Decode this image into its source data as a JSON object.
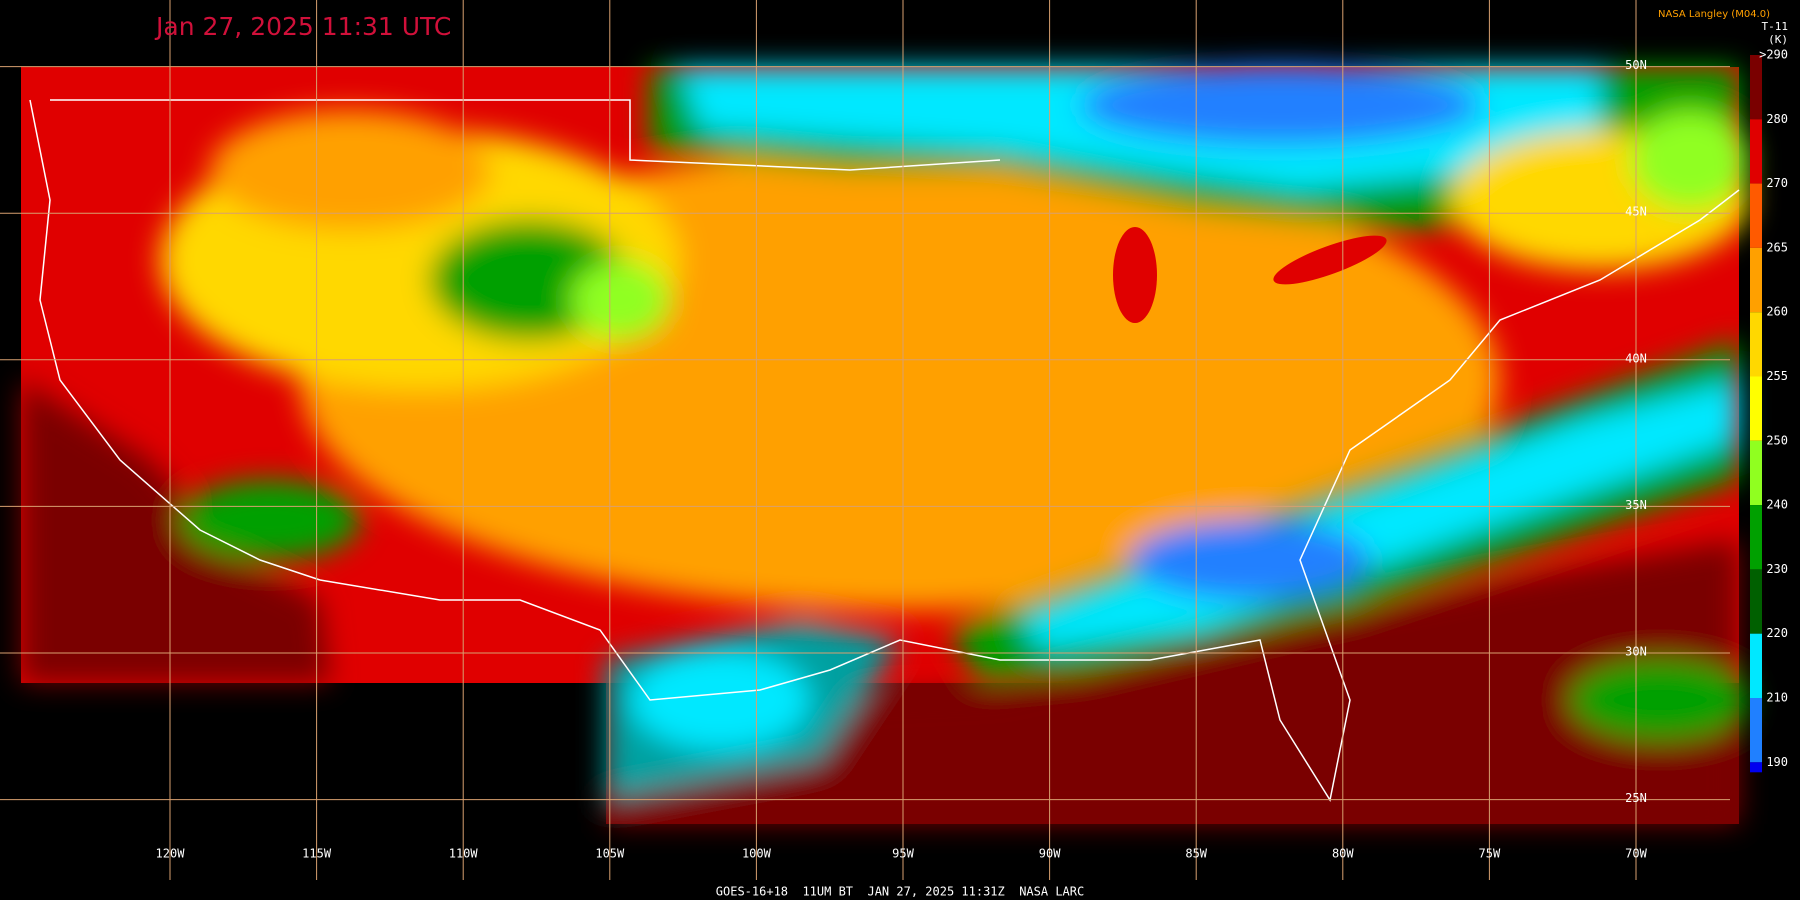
{
  "header": {
    "title": "Jan 27, 2025 11:31 UTC",
    "credit": "NASA Langley (M04.0)",
    "product": "T-11",
    "unit": "(K)"
  },
  "footer": "GOES-16+18  11UM BT  JAN 27, 2025 11:31Z  NASA LARC",
  "longitudes": [
    {
      "value": -120,
      "label": "120W"
    },
    {
      "value": -115,
      "label": "115W"
    },
    {
      "value": -110,
      "label": "110W"
    },
    {
      "value": -105,
      "label": "105W"
    },
    {
      "value": -100,
      "label": "100W"
    },
    {
      "value": -95,
      "label": "95W"
    },
    {
      "value": -90,
      "label": "90W"
    },
    {
      "value": -85,
      "label": "85W"
    },
    {
      "value": -80,
      "label": "80W"
    },
    {
      "value": -75,
      "label": "75W"
    },
    {
      "value": -70,
      "label": "70W"
    }
  ],
  "latitudes": [
    {
      "value": 50,
      "label": "50N"
    },
    {
      "value": 45,
      "label": "45N"
    },
    {
      "value": 40,
      "label": "40N"
    },
    {
      "value": 35,
      "label": "35N"
    },
    {
      "value": 30,
      "label": "30N"
    },
    {
      "value": 25,
      "label": "25N"
    }
  ],
  "colorbar": [
    {
      "label": ">290",
      "color": "#7a0000"
    },
    {
      "label": "280",
      "color": "#e00000"
    },
    {
      "label": "270",
      "color": "#ff5a00"
    },
    {
      "label": "265",
      "color": "#ffa000"
    },
    {
      "label": "260",
      "color": "#ffd800"
    },
    {
      "label": "255",
      "color": "#ffff00"
    },
    {
      "label": "250",
      "color": "#90ff20"
    },
    {
      "label": "240",
      "color": "#00a000"
    },
    {
      "label": "230",
      "color": "#006000"
    },
    {
      "label": "220",
      "color": "#00e8ff"
    },
    {
      "label": "210",
      "color": "#2080ff"
    },
    {
      "label": "190",
      "color": "#0000f0"
    }
  ]
}
